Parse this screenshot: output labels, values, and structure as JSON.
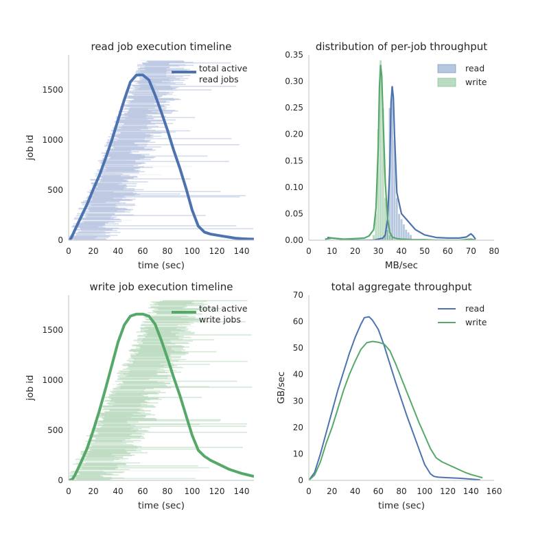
{
  "colors": {
    "read": "#4c72b0",
    "write": "#55a868",
    "read_light": "#9db0d5",
    "write_light": "#9fcda6",
    "axis": "#cccccc",
    "text": "#262626"
  },
  "chart_data": [
    {
      "id": "read-timeline",
      "type": "line",
      "title": "read job execution timeline",
      "xlabel": "time (sec)",
      "ylabel": "job id",
      "xlim": [
        0,
        150
      ],
      "ylim": [
        0,
        1850
      ],
      "xticks": [
        0,
        20,
        40,
        60,
        80,
        100,
        120,
        140
      ],
      "yticks": [
        0,
        500,
        1000,
        1500
      ],
      "grid": false,
      "legend_position": "top-right",
      "legend": [
        "total active",
        "read jobs"
      ],
      "color_key": "read",
      "band": {
        "description_keyless": true,
        "jobs_max": 1800,
        "start_first": 2,
        "start_last": 62,
        "duration_min": 20,
        "duration_max": 40,
        "tail_extension_max": 150
      },
      "series": [
        {
          "x": [
            0,
            2,
            5,
            10,
            15,
            20,
            25,
            30,
            35,
            40,
            45,
            50,
            55,
            60,
            65,
            70,
            75,
            80,
            85,
            90,
            95,
            100,
            105,
            110,
            115,
            120,
            125,
            130,
            135,
            140,
            145,
            150
          ],
          "values": [
            0,
            20,
            100,
            230,
            360,
            510,
            650,
            820,
            1000,
            1200,
            1400,
            1580,
            1650,
            1650,
            1600,
            1450,
            1280,
            1100,
            900,
            720,
            520,
            300,
            140,
            80,
            60,
            50,
            40,
            30,
            20,
            15,
            12,
            10
          ]
        }
      ]
    },
    {
      "id": "throughput-dist",
      "type": "bar",
      "title": "distribution of per-job throughput",
      "xlabel": "MB/sec",
      "ylabel": "",
      "xlim": [
        0,
        80
      ],
      "ylim": [
        0,
        0.35
      ],
      "xticks": [
        0,
        10,
        20,
        30,
        40,
        50,
        60,
        70,
        80
      ],
      "yticks": [
        0.0,
        0.05,
        0.1,
        0.15,
        0.2,
        0.25,
        0.3,
        0.35
      ],
      "ytick_labels": [
        "0.00",
        "0.05",
        "0.10",
        "0.15",
        "0.20",
        "0.25",
        "0.30",
        "0.35"
      ],
      "grid": false,
      "legend_position": "top-right",
      "series": [
        {
          "name": "read",
          "color_key": "read",
          "bins_x": [
            32,
            33,
            34,
            35,
            36,
            37,
            38,
            39,
            40,
            41,
            42,
            43,
            44
          ],
          "bins_h": [
            0.004,
            0.01,
            0.05,
            0.25,
            0.29,
            0.19,
            0.08,
            0.05,
            0.04,
            0.03,
            0.02,
            0.015,
            0.01
          ],
          "kde_x": [
            8,
            12,
            16,
            20,
            24,
            28,
            30,
            32,
            33,
            34,
            35,
            35.5,
            36,
            36.5,
            37,
            38,
            40,
            42,
            44,
            46,
            48,
            50,
            55,
            60,
            65,
            68,
            70,
            71,
            72
          ],
          "kde_y": [
            0.005,
            0.003,
            0.001,
            0.0,
            0.0,
            0.0,
            0.002,
            0.004,
            0.01,
            0.04,
            0.14,
            0.26,
            0.29,
            0.27,
            0.2,
            0.09,
            0.05,
            0.04,
            0.03,
            0.02,
            0.015,
            0.01,
            0.005,
            0.004,
            0.004,
            0.006,
            0.012,
            0.008,
            0.002
          ]
        },
        {
          "name": "write",
          "color_key": "write",
          "bins_x": [
            28,
            29,
            30,
            31,
            32,
            33,
            34,
            35,
            36
          ],
          "bins_h": [
            0.01,
            0.05,
            0.21,
            0.34,
            0.25,
            0.08,
            0.02,
            0.01,
            0.005
          ],
          "kde_x": [
            7,
            10,
            15,
            20,
            24,
            26,
            28,
            29,
            30,
            30.5,
            31,
            31.5,
            32,
            33,
            34,
            35,
            36,
            38,
            40,
            45,
            50,
            55,
            60,
            65,
            70,
            72
          ],
          "kde_y": [
            0.002,
            0.004,
            0.002,
            0.003,
            0.004,
            0.008,
            0.02,
            0.06,
            0.18,
            0.29,
            0.33,
            0.31,
            0.24,
            0.11,
            0.04,
            0.015,
            0.006,
            0.003,
            0.002,
            0.001,
            0.001,
            0.0,
            0.0,
            0.0,
            0.002,
            0.0
          ]
        }
      ]
    },
    {
      "id": "write-timeline",
      "type": "line",
      "title": "write job execution timeline",
      "xlabel": "time (sec)",
      "ylabel": "job id",
      "xlim": [
        0,
        150
      ],
      "ylim": [
        0,
        1850
      ],
      "xticks": [
        0,
        20,
        40,
        60,
        80,
        100,
        120,
        140
      ],
      "yticks": [
        0,
        500,
        1000,
        1500
      ],
      "grid": false,
      "legend_position": "top-right",
      "legend": [
        "total active",
        "write jobs"
      ],
      "color_key": "write",
      "band": {
        "jobs_max": 1800,
        "start_first": 2,
        "start_last": 72,
        "duration_min": 25,
        "duration_max": 45,
        "tail_extension_max": 150
      },
      "series": [
        {
          "x": [
            0,
            3,
            5,
            10,
            15,
            20,
            25,
            30,
            35,
            40,
            45,
            50,
            55,
            60,
            65,
            70,
            75,
            80,
            85,
            90,
            95,
            100,
            105,
            110,
            115,
            120,
            125,
            130,
            135,
            140,
            145,
            150
          ],
          "values": [
            0,
            10,
            50,
            180,
            320,
            500,
            700,
            920,
            1150,
            1380,
            1550,
            1640,
            1660,
            1660,
            1640,
            1560,
            1400,
            1220,
            1030,
            850,
            650,
            450,
            300,
            240,
            200,
            170,
            140,
            110,
            90,
            70,
            55,
            40
          ]
        }
      ]
    },
    {
      "id": "aggregate-throughput",
      "type": "line",
      "title": "total aggregate throughput",
      "xlabel": "time (sec)",
      "ylabel": "GB/sec",
      "xlim": [
        0,
        160
      ],
      "ylim": [
        0,
        70
      ],
      "xticks": [
        0,
        20,
        40,
        60,
        80,
        100,
        120,
        140,
        160
      ],
      "yticks": [
        0,
        10,
        20,
        30,
        40,
        50,
        60,
        70
      ],
      "grid": false,
      "legend_position": "top-right",
      "series": [
        {
          "name": "read",
          "color_key": "read",
          "x": [
            0,
            5,
            10,
            15,
            20,
            25,
            30,
            35,
            40,
            45,
            48,
            52,
            55,
            60,
            65,
            70,
            75,
            80,
            85,
            90,
            95,
            100,
            105,
            108,
            112,
            120,
            130,
            140,
            148
          ],
          "values": [
            0,
            3,
            10,
            18,
            26,
            34,
            41,
            48,
            54,
            59,
            61.5,
            61.8,
            60.5,
            57,
            51,
            44,
            37,
            30.5,
            24,
            18,
            12,
            6,
            2.5,
            1.5,
            1.2,
            1.0,
            0.8,
            0.5,
            0.2
          ]
        },
        {
          "name": "write",
          "color_key": "write",
          "x": [
            0,
            5,
            10,
            15,
            20,
            25,
            30,
            35,
            40,
            45,
            50,
            55,
            60,
            65,
            70,
            75,
            80,
            85,
            90,
            95,
            100,
            105,
            110,
            115,
            120,
            125,
            130,
            135,
            140,
            145,
            150
          ],
          "values": [
            0,
            2,
            7,
            14,
            20,
            27,
            34,
            40,
            45,
            49.5,
            52,
            52.5,
            52.2,
            51.5,
            49,
            44,
            38.5,
            33,
            27.5,
            22,
            17,
            12,
            8.5,
            7,
            6,
            5,
            4,
            3,
            2.2,
            1.6,
            1.0
          ]
        }
      ]
    }
  ]
}
